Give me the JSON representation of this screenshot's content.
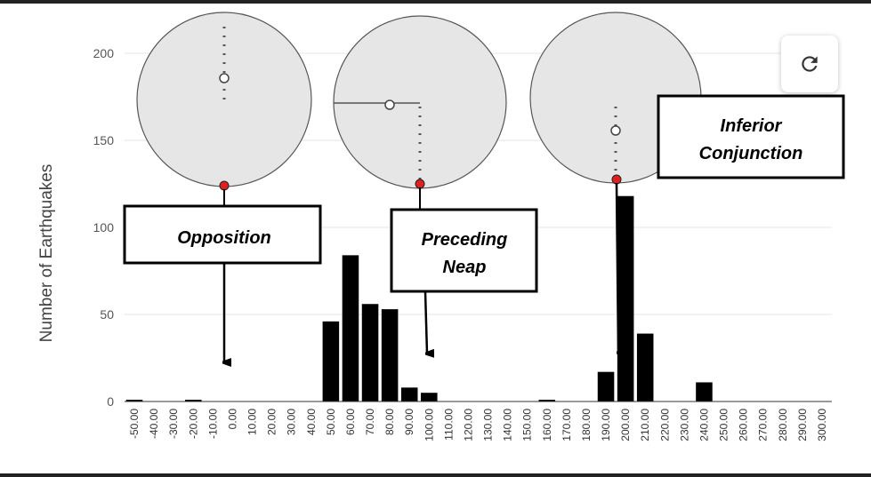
{
  "chart_data": {
    "type": "bar",
    "ylabel": "Number of Earthquakes",
    "xlabel": "",
    "yticks": [
      0,
      50,
      100,
      150,
      200
    ],
    "ylim": [
      0,
      220
    ],
    "grid": true,
    "categories": [
      "-50.00",
      "-40.00",
      "-30.00",
      "-20.00",
      "-10.00",
      "0.00",
      "10.00",
      "20.00",
      "30.00",
      "40.00",
      "50.00",
      "60.00",
      "70.00",
      "80.00",
      "90.00",
      "100.00",
      "110.00",
      "120.00",
      "130.00",
      "140.00",
      "150.00",
      "160.00",
      "170.00",
      "180.00",
      "190.00",
      "200.00",
      "210.00",
      "220.00",
      "230.00",
      "240.00",
      "250.00",
      "260.00",
      "270.00",
      "280.00",
      "290.00",
      "300.00"
    ],
    "values": [
      1,
      0,
      0,
      1,
      0,
      0,
      0,
      0,
      0,
      0,
      46,
      84,
      56,
      53,
      8,
      5,
      0,
      0,
      0,
      0,
      0,
      1,
      0,
      0,
      17,
      118,
      39,
      0,
      0,
      11,
      0,
      0,
      0,
      0,
      0,
      0
    ]
  },
  "annotations": {
    "opposition": "Opposition",
    "preceding_neap_1": "Preceding",
    "preceding_neap_2": "Neap",
    "inferior_conj_1": "Inferior",
    "inferior_conj_2": "Conjunction"
  },
  "controls": {
    "refresh_icon": "refresh-icon"
  },
  "colors": {
    "bar": "#000000",
    "grid": "#e6e6e6",
    "orbit_fill": "#e6e6e6",
    "planet_marker": "#e02020"
  }
}
